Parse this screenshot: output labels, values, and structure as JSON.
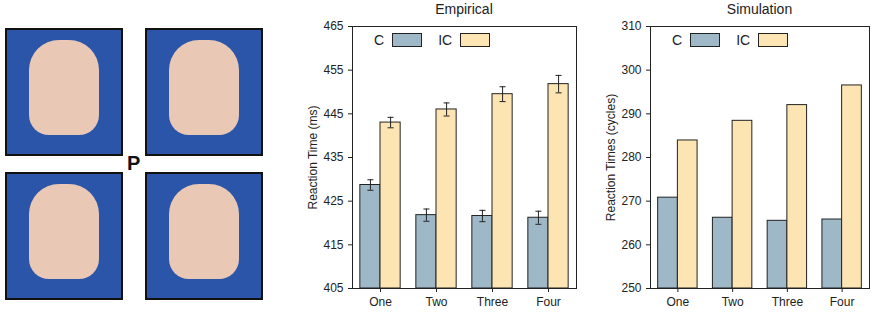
{
  "image_panel": {
    "label": "P"
  },
  "chart_data": [
    {
      "type": "bar",
      "title": "Empirical",
      "ylabel": "Reaction Time (ms)",
      "categories": [
        "One",
        "Two",
        "Three",
        "Four"
      ],
      "series": [
        {
          "name": "C",
          "color": "#9fb8c8",
          "values": [
            428.7,
            421.8,
            421.6,
            421.2
          ],
          "errors": [
            1.2,
            1.4,
            1.3,
            1.5
          ]
        },
        {
          "name": "IC",
          "color": "#fce5b3",
          "values": [
            443.0,
            446.0,
            449.5,
            451.8
          ],
          "errors": [
            1.2,
            1.5,
            1.7,
            2.0
          ]
        }
      ],
      "ylim": [
        405,
        465
      ],
      "yticks": [
        405,
        415,
        425,
        435,
        445,
        455,
        465
      ],
      "grid": false,
      "legend": "top"
    },
    {
      "type": "bar",
      "title": "Simulation",
      "ylabel": "Reaction Times (cycles)",
      "categories": [
        "One",
        "Two",
        "Three",
        "Four"
      ],
      "series": [
        {
          "name": "C",
          "color": "#9fb8c8",
          "values": [
            270.8,
            266.2,
            265.5,
            265.8
          ]
        },
        {
          "name": "IC",
          "color": "#fce5b3",
          "values": [
            283.9,
            288.4,
            292.0,
            296.5
          ]
        }
      ],
      "ylim": [
        250,
        310
      ],
      "yticks": [
        250,
        260,
        270,
        280,
        290,
        300,
        310
      ],
      "grid": false,
      "legend": "top"
    }
  ]
}
